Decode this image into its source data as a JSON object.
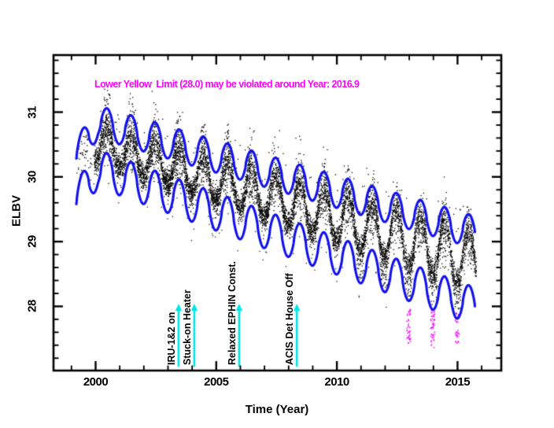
{
  "chart_data": {
    "type": "scatter",
    "title": "Lower Yellow  Limit (28.0) may be violated around Year: 2016.9",
    "title_color": "#ff00ff",
    "xlabel": "Time (Year)",
    "ylabel": "ELBV",
    "xlim": [
      1998.25,
      2016.85
    ],
    "ylim": [
      27.0,
      31.9
    ],
    "xticks": [
      "2000",
      "2005",
      "2010",
      "2015"
    ],
    "yticks": [
      "28",
      "29",
      "30",
      "31"
    ],
    "x_minor_step_years": 1,
    "y_minor_step": 0.2,
    "grid": false,
    "frame_color": "#000000",
    "background_color": "#ffffff",
    "series": [
      {
        "name": "elbv-telemetry-scatter",
        "type": "dense-scatter",
        "color": "#000000",
        "t_start": 1999.95,
        "t_end": 2015.78,
        "trend_value_at_2000": 30.52,
        "trend_slope_per_year": -0.115,
        "seasonal_period_years": 1.0,
        "seasonal_peak_phase": 0.47,
        "seasonal_amp_at_2000": 0.265,
        "seasonal_amp_growth_per_year": 0.01,
        "core_sigma": 0.09,
        "peak_plume_at_2000": 0.62,
        "peak_plume_slope_per_year": -0.016,
        "n_points": 9000,
        "presample_t_start": 1999.2,
        "presample_n": 45
      },
      {
        "name": "upper-limit-envelope",
        "type": "line",
        "color": "#1111ee",
        "line_width": 3.1,
        "t_start": 1999.2,
        "t_end": 2015.72,
        "mean_value_at_2000": 30.86,
        "slope_per_year": -0.109,
        "seasonal_amp": 0.25,
        "startup_drop": 0.61,
        "startup_end": 2000.1
      },
      {
        "name": "lower-limit-envelope",
        "type": "line",
        "color": "#1111ee",
        "line_width": 3.1,
        "t_start": 1999.2,
        "t_end": 2015.72,
        "mean_value_at_2000": 30.14,
        "slope_per_year": -0.136,
        "seasonal_amp": 0.29,
        "startup_drop": 0.61,
        "startup_end": 2000.1
      },
      {
        "name": "limit-violation-scatter",
        "type": "scatter",
        "color": "#ff00ff",
        "clusters": [
          {
            "year": 2012.98,
            "top_value": 27.95,
            "bottom_value": 27.42,
            "count": 42
          },
          {
            "year": 2013.97,
            "top_value": 27.92,
            "bottom_value": 27.38,
            "count": 48
          },
          {
            "year": 2014.99,
            "top_value": 27.9,
            "bottom_value": 27.45,
            "count": 36
          }
        ]
      }
    ],
    "event_annotations": {
      "arrow_color": "#00e5e5",
      "label_color": "#000000",
      "arrow_from_value": 27.08,
      "arrow_to_value": 27.98,
      "events": [
        {
          "label": "IRU-1&2 on",
          "year": 2003.44
        },
        {
          "label": "Stuck-on Heater",
          "year": 2004.09
        },
        {
          "label": "Relaxed EPHIN Const.",
          "year": 2005.95
        },
        {
          "label": "ACIS Det House Off",
          "year": 2008.34
        }
      ]
    }
  }
}
